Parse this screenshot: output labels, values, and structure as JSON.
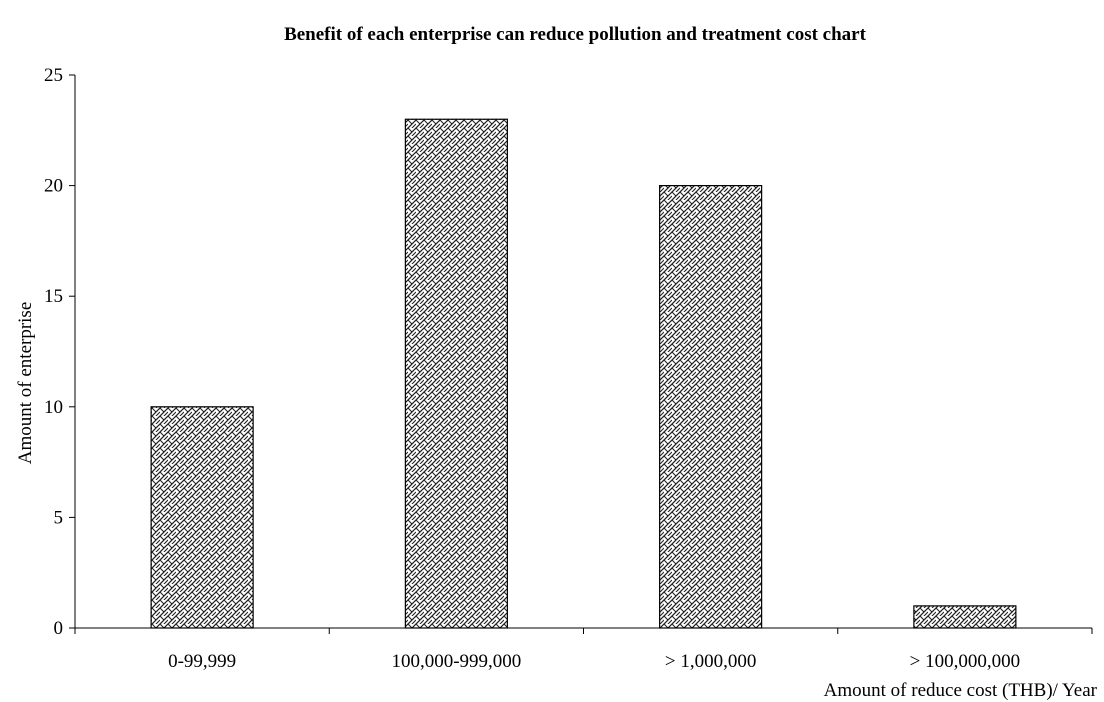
{
  "chart_data": {
    "type": "bar",
    "title": "Benefit of each enterprise can reduce pollution and treatment cost chart",
    "xlabel": "Amount of reduce cost (THB)/ Year",
    "ylabel": "Amount of enterprise",
    "categories": [
      "0-99,999",
      "100,000-999,000",
      "> 1,000,000",
      "> 100,000,000"
    ],
    "values": [
      10,
      23,
      20,
      1
    ],
    "ylim": [
      0,
      25
    ],
    "yticks": [
      0,
      5,
      10,
      15,
      20,
      25
    ],
    "grid": false,
    "legend": "none",
    "bar_fill": "crosshatch-pattern",
    "colors": {
      "bar_stroke": "#000000",
      "pattern_dark": "#1a1a1a",
      "pattern_light": "#ffffff",
      "axis": "#000000"
    }
  }
}
